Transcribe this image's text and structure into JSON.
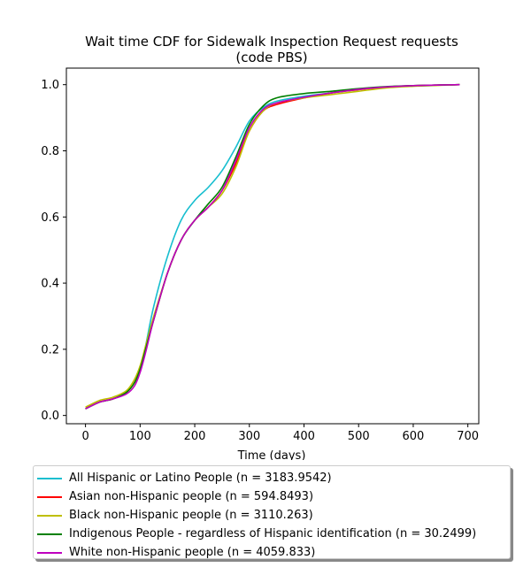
{
  "chart_data": {
    "type": "line",
    "title": "Wait time CDF for Sidewalk Inspection Request  requests",
    "subtitle": "(code PBS)",
    "xlabel": "Time (days)",
    "ylabel": "",
    "xlim": [
      -35,
      720
    ],
    "ylim": [
      -0.025,
      1.05
    ],
    "xticks": [
      0,
      100,
      200,
      300,
      400,
      500,
      600,
      700
    ],
    "yticks": [
      0.0,
      0.2,
      0.4,
      0.6,
      0.8,
      1.0
    ],
    "xtick_labels": [
      "0",
      "100",
      "200",
      "300",
      "400",
      "500",
      "600",
      "700"
    ],
    "ytick_labels": [
      "0.0",
      "0.2",
      "0.4",
      "0.6",
      "0.8",
      "1.0"
    ],
    "grid": false,
    "legend_position": "below",
    "series": [
      {
        "name": "All Hispanic or Latino People (n = 3183.9542)",
        "color": "#17becf",
        "x": [
          0,
          25,
          50,
          75,
          90,
          100,
          110,
          125,
          150,
          175,
          200,
          225,
          250,
          275,
          300,
          325,
          350,
          400,
          450,
          500,
          550,
          600,
          650,
          685
        ],
        "y": [
          0.02,
          0.04,
          0.05,
          0.07,
          0.1,
          0.14,
          0.21,
          0.33,
          0.48,
          0.59,
          0.65,
          0.69,
          0.74,
          0.81,
          0.89,
          0.93,
          0.95,
          0.965,
          0.975,
          0.985,
          0.993,
          0.997,
          0.999,
          1.0
        ]
      },
      {
        "name": "Asian non-Hispanic people (n = 594.8493)",
        "color": "#ff0000",
        "x": [
          0,
          25,
          50,
          75,
          90,
          100,
          110,
          125,
          150,
          175,
          200,
          225,
          250,
          275,
          300,
          325,
          350,
          400,
          450,
          500,
          550,
          600,
          650,
          685
        ],
        "y": [
          0.02,
          0.04,
          0.05,
          0.07,
          0.1,
          0.14,
          0.2,
          0.29,
          0.43,
          0.53,
          0.59,
          0.63,
          0.68,
          0.76,
          0.86,
          0.92,
          0.94,
          0.96,
          0.975,
          0.985,
          0.993,
          0.997,
          0.999,
          1.0
        ]
      },
      {
        "name": "Black non-Hispanic people (n = 3110.263)",
        "color": "#bfbf00",
        "x": [
          0,
          25,
          50,
          75,
          90,
          100,
          110,
          125,
          150,
          175,
          200,
          225,
          250,
          275,
          300,
          325,
          350,
          400,
          450,
          500,
          550,
          600,
          650,
          685
        ],
        "y": [
          0.025,
          0.045,
          0.055,
          0.075,
          0.11,
          0.15,
          0.21,
          0.3,
          0.43,
          0.53,
          0.59,
          0.63,
          0.67,
          0.75,
          0.86,
          0.92,
          0.945,
          0.96,
          0.97,
          0.98,
          0.99,
          0.995,
          0.998,
          1.0
        ]
      },
      {
        "name": "Indigenous People - regardless of Hispanic identification (n = 30.2499)",
        "color": "#008000",
        "x": [
          0,
          25,
          50,
          75,
          90,
          100,
          110,
          125,
          150,
          175,
          200,
          225,
          250,
          275,
          300,
          325,
          350,
          400,
          450,
          500,
          550,
          600,
          650,
          685
        ],
        "y": [
          0.02,
          0.04,
          0.05,
          0.07,
          0.1,
          0.14,
          0.2,
          0.29,
          0.43,
          0.53,
          0.59,
          0.64,
          0.69,
          0.78,
          0.88,
          0.935,
          0.96,
          0.973,
          0.98,
          0.988,
          0.994,
          0.997,
          0.999,
          1.0
        ]
      },
      {
        "name": "White non-Hispanic people (n = 4059.833)",
        "color": "#bf00bf",
        "x": [
          0,
          25,
          50,
          75,
          90,
          100,
          110,
          125,
          150,
          175,
          200,
          225,
          250,
          275,
          300,
          325,
          350,
          400,
          450,
          500,
          550,
          600,
          650,
          685
        ],
        "y": [
          0.02,
          0.04,
          0.05,
          0.065,
          0.09,
          0.13,
          0.19,
          0.29,
          0.43,
          0.53,
          0.59,
          0.63,
          0.68,
          0.77,
          0.87,
          0.925,
          0.945,
          0.962,
          0.975,
          0.986,
          0.993,
          0.997,
          0.999,
          1.0
        ]
      }
    ]
  }
}
